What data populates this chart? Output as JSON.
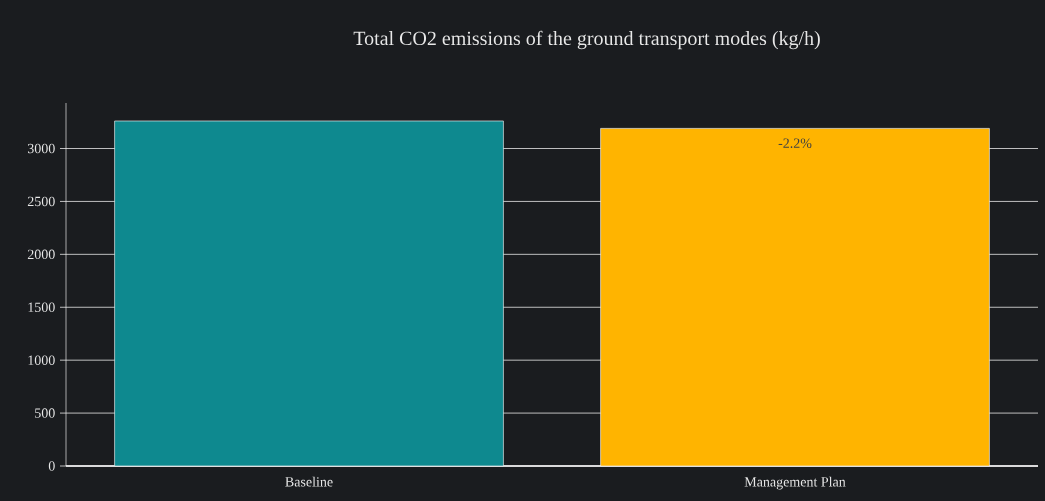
{
  "chart_data": {
    "type": "bar",
    "title": "Total CO2 emissions of the ground transport modes (kg/h)",
    "categories": [
      "Baseline",
      "Management Plan"
    ],
    "values": [
      3260,
      3190
    ],
    "colors": [
      "#0e898f",
      "#ffb400"
    ],
    "ylim": [
      0,
      3430
    ],
    "yticks": [
      0,
      500,
      1000,
      1500,
      2000,
      2500,
      3000
    ],
    "grid": "y",
    "annotations": [
      {
        "text": "-2.2%",
        "x": "Management Plan",
        "y": 3190
      }
    ]
  }
}
